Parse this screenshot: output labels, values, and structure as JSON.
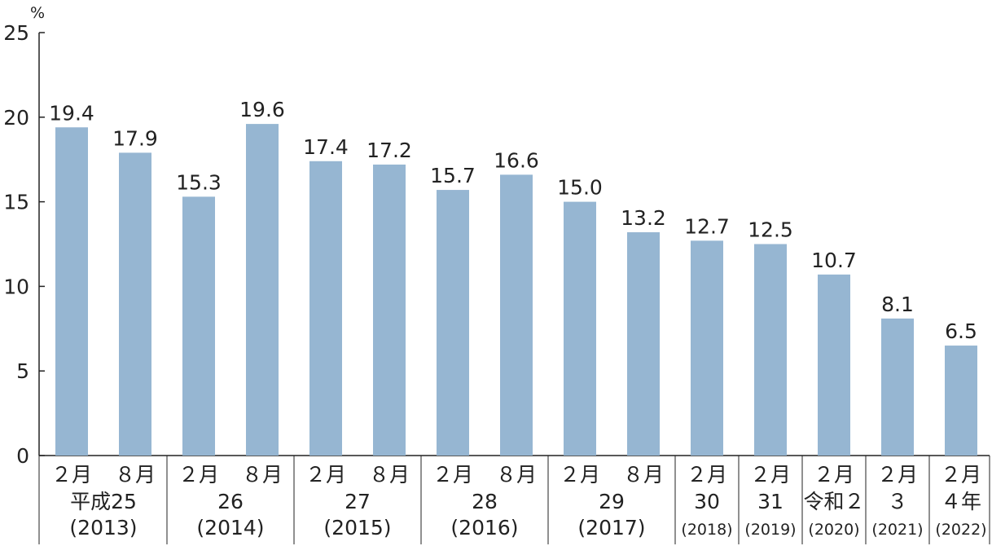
{
  "chart_data": {
    "type": "bar",
    "y_unit": "%",
    "ylim": [
      0,
      25
    ],
    "y_ticks": [
      0,
      5,
      10,
      15,
      20,
      25
    ],
    "grid": false,
    "bar_color": "#96b6d2",
    "values": [
      19.4,
      17.9,
      15.3,
      19.6,
      17.4,
      17.2,
      15.7,
      16.6,
      15.0,
      13.2,
      12.7,
      12.5,
      10.7,
      8.1,
      6.5
    ],
    "value_labels": [
      "19.4",
      "17.9",
      "15.3",
      "19.6",
      "17.4",
      "17.2",
      "15.7",
      "16.6",
      "15.0",
      "13.2",
      "12.7",
      "12.5",
      "10.7",
      "8.1",
      "6.5"
    ],
    "month_labels": [
      "２月",
      "８月",
      "２月",
      "８月",
      "２月",
      "８月",
      "２月",
      "８月",
      "２月",
      "８月",
      "２月",
      "２月",
      "２月",
      "２月",
      "２月"
    ],
    "year_groups": [
      {
        "era": "平成25",
        "year": "(2013)",
        "bars": 2
      },
      {
        "era": "26",
        "year": "(2014)",
        "bars": 2
      },
      {
        "era": "27",
        "year": "(2015)",
        "bars": 2
      },
      {
        "era": "28",
        "year": "(2016)",
        "bars": 2
      },
      {
        "era": "29",
        "year": "(2017)",
        "bars": 2
      },
      {
        "era": "30",
        "year": "(2018)",
        "bars": 1
      },
      {
        "era": "31",
        "year": "(2019)",
        "bars": 1
      },
      {
        "era": "令和２",
        "year": "(2020)",
        "bars": 1
      },
      {
        "era": "３",
        "year": "(2021)",
        "bars": 1
      },
      {
        "era": "４年",
        "year": "(2022)",
        "bars": 1
      }
    ]
  }
}
